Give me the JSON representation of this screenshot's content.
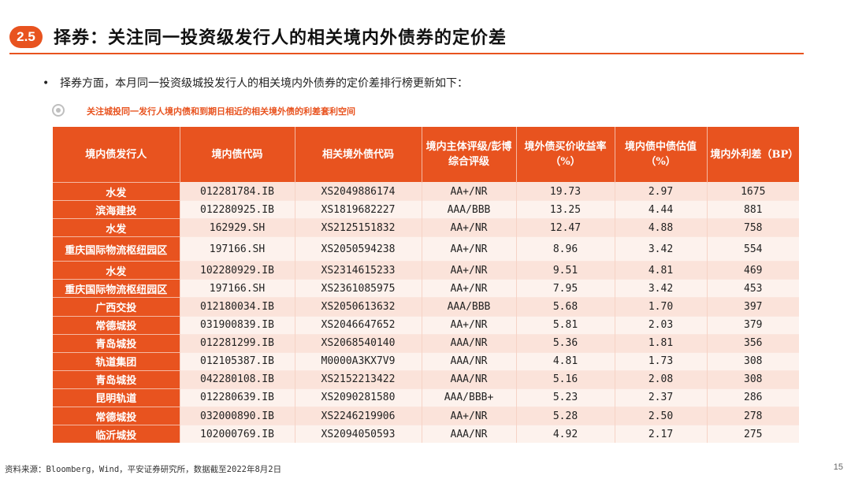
{
  "header": {
    "section_number": "2.5",
    "title": "择券：关注同一投资级发行人的相关境内外债券的定价差"
  },
  "bullet": {
    "text": "择券方面，本月同一投资级城投发行人的相关境内外债券的定价差排行榜更新如下："
  },
  "table": {
    "caption": "关注城投同一发行人境内债和到期日相近的相关境外债的利差套利空间",
    "columns": [
      "境内债发行人",
      "境内债代码",
      "相关境外债代码",
      "境内主体评级/彭博综合评级",
      "境外债买价收益率（%）",
      "境内债中债估值（%）",
      "境内外利差（BP）"
    ],
    "rows": [
      [
        "水发",
        "012281784.IB",
        "XS2049886174",
        "AA+/NR",
        "19.73",
        "2.97",
        "1675"
      ],
      [
        "滨海建投",
        "012280925.IB",
        "XS1819682227",
        "AAA/BBB",
        "13.25",
        "4.44",
        "881"
      ],
      [
        "水发",
        "162929.SH",
        "XS2125151832",
        "AA+/NR",
        "12.47",
        "4.88",
        "758"
      ],
      [
        "重庆国际物流枢纽园区",
        "197166.SH",
        "XS2050594238",
        "AA+/NR",
        "8.96",
        "3.42",
        "554"
      ],
      [
        "水发",
        "102280929.IB",
        "XS2314615233",
        "AA+/NR",
        "9.51",
        "4.81",
        "469"
      ],
      [
        "重庆国际物流枢纽园区",
        "197166.SH",
        "XS2361085975",
        "AA+/NR",
        "7.95",
        "3.42",
        "453"
      ],
      [
        "广西交投",
        "012180034.IB",
        "XS2050613632",
        "AAA/BBB",
        "5.68",
        "1.70",
        "397"
      ],
      [
        "常德城投",
        "031900839.IB",
        "XS2046647652",
        "AA+/NR",
        "5.81",
        "2.03",
        "379"
      ],
      [
        "青岛城投",
        "012281299.IB",
        "XS2068540140",
        "AAA/NR",
        "5.36",
        "1.81",
        "356"
      ],
      [
        "轨道集团",
        "012105387.IB",
        "M0000A3KX7V9",
        "AAA/NR",
        "4.81",
        "1.73",
        "308"
      ],
      [
        "青岛城投",
        "042280108.IB",
        "XS2152213422",
        "AAA/NR",
        "5.16",
        "2.08",
        "308"
      ],
      [
        "昆明轨道",
        "012280639.IB",
        "XS2090281580",
        "AAA/BBB+",
        "5.23",
        "2.37",
        "286"
      ],
      [
        "常德城投",
        "032000890.IB",
        "XS2246219906",
        "AA+/NR",
        "5.28",
        "2.50",
        "278"
      ],
      [
        "临沂城投",
        "102000769.IB",
        "XS2094050593",
        "AAA/NR",
        "4.92",
        "2.17",
        "275"
      ]
    ]
  },
  "footer": {
    "source": "资料来源：Bloomberg，Wind，平安证券研究所，数据截至2022年8月2日",
    "page_number": "15"
  }
}
